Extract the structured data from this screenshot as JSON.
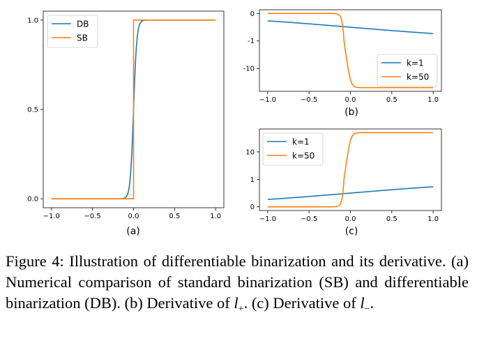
{
  "chart_data": [
    {
      "id": "a",
      "type": "line",
      "label": "(a)",
      "x_range": [
        -1.0,
        1.0
      ],
      "ylim": [
        0.0,
        1.0
      ],
      "x_ticks": [
        "−1.0",
        "−0.5",
        "0.0",
        "0.5",
        "1.0"
      ],
      "x_tick_values": [
        -1.0,
        -0.5,
        0.0,
        0.5,
        1.0
      ],
      "y_ticks": [
        "0.0",
        "0.5",
        "1.0"
      ],
      "y_tick_values": [
        0.0,
        0.5,
        1.0
      ],
      "legend_position": "top-left",
      "series": [
        {
          "name": "DB",
          "color": "#1f77b4",
          "function": "sigmoid",
          "k": 50
        },
        {
          "name": "SB",
          "color": "#ff7f0e",
          "function": "step"
        }
      ]
    },
    {
      "id": "b",
      "type": "line",
      "label": "(b)",
      "x_range": [
        -1.0,
        1.0
      ],
      "y_scale": "symlog",
      "ylim": [
        -50,
        0
      ],
      "x_ticks": [
        "−1.0",
        "−0.5",
        "0.0",
        "0.5",
        "1.0"
      ],
      "x_tick_values": [
        -1.0,
        -0.5,
        0.0,
        0.5,
        1.0
      ],
      "y_ticks": [
        "0",
        "-1",
        "-10"
      ],
      "y_tick_values": [
        0,
        -1,
        -10
      ],
      "legend_position": "bottom-right",
      "series": [
        {
          "name": "k=1",
          "color": "#1f77b4",
          "function": "neg-sigmoid",
          "k": 1
        },
        {
          "name": "k=50",
          "color": "#ff7f0e",
          "function": "neg-sigmoid",
          "k": 50
        }
      ]
    },
    {
      "id": "c",
      "type": "line",
      "label": "(c)",
      "x_range": [
        -1.0,
        1.0
      ],
      "y_scale": "symlog",
      "ylim": [
        0,
        50
      ],
      "x_ticks": [
        "−1.0",
        "−0.5",
        "0.0",
        "0.5",
        "1.0"
      ],
      "x_tick_values": [
        -1.0,
        -0.5,
        0.0,
        0.5,
        1.0
      ],
      "y_ticks": [
        "0",
        "1",
        "10"
      ],
      "y_tick_values": [
        0,
        1,
        10
      ],
      "legend_position": "top-left",
      "series": [
        {
          "name": "k=1",
          "color": "#1f77b4",
          "function": "sigmoid",
          "k": 1
        },
        {
          "name": "k=50",
          "color": "#ff7f0e",
          "function": "sigmoid",
          "k": 50
        }
      ]
    }
  ],
  "caption": {
    "part1": "Figure 4: Illustration of differentiable binarization and its derivative. (a) Numerical comparison of standard binarization (SB) and differentiable binarization (DB). (b) Derivative of ",
    "l_plus_base": "l",
    "l_plus_sub": "+",
    "part2": ". (c) Derivative of ",
    "l_minus_base": "l",
    "l_minus_sub": "−",
    "part3": "."
  }
}
